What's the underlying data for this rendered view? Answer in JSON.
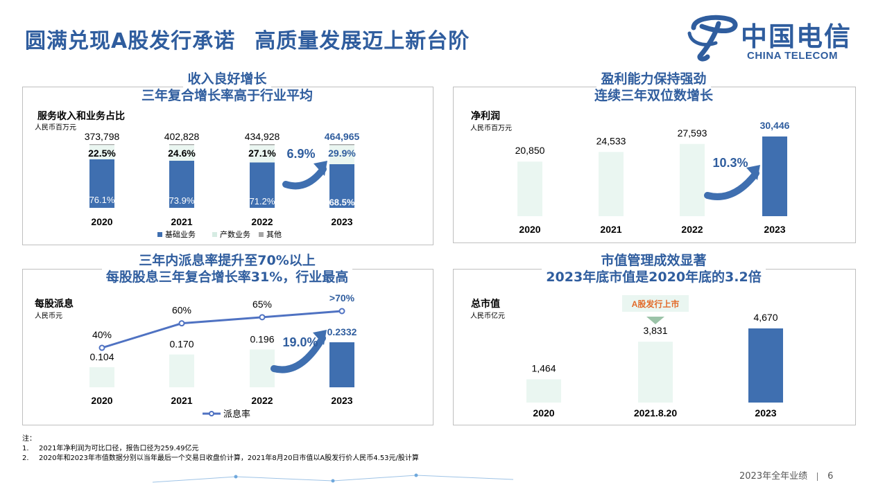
{
  "page": {
    "title_part1": "圆满兑现A股发行承诺",
    "title_part2": "高质量发展迈上新台阶",
    "logo_cn": "中国电信",
    "logo_en": "CHINA TELECOM",
    "footer_text": "2023年全年业绩",
    "page_number": "6",
    "notes_header": "注：",
    "notes": [
      {
        "num": "1.",
        "text": "2021年净利润为可比口径，报告口径为259.49亿元"
      },
      {
        "num": "2.",
        "text": "2020年和2023年市值数据分别以当年最后一个交易日收盘价计算，2021年8月20日市值以A股发行价人民币4.53元/股计算"
      }
    ],
    "colors": {
      "accent": "#2f5d9e",
      "bar_blue": "#3f6fb0",
      "bar_light": "#eaf6f1",
      "gray": "#bfbfbf"
    }
  },
  "chart_data": [
    {
      "type": "bar",
      "panel_title": [
        "收入良好增长",
        "三年复合增长率高于行业平均"
      ],
      "title": "服务收入和业务占比",
      "unit": "人民币百万元",
      "categories": [
        "2020",
        "2021",
        "2022",
        "2023"
      ],
      "totals": [
        "373,798",
        "402,828",
        "434,928",
        "464,965"
      ],
      "series": [
        {
          "name": "基础业务",
          "values": [
            76.1,
            73.9,
            71.2,
            68.5
          ],
          "labels": [
            "76.1%",
            "73.9%",
            "71.2%",
            "68.5%"
          ],
          "color": "#3f6fb0"
        },
        {
          "name": "产数业务",
          "values": [
            22.5,
            24.6,
            27.1,
            29.9
          ],
          "labels": [
            "22.5%",
            "24.6%",
            "27.1%",
            "29.9%"
          ],
          "color": "#eaf6f1"
        },
        {
          "name": "其他",
          "values": [
            1.4,
            1.5,
            1.7,
            1.6
          ],
          "color": "#a6a6a6"
        }
      ],
      "growth_label": "6.9%",
      "legend": "bottom"
    },
    {
      "type": "bar",
      "panel_title": [
        "盈利能力保持强劲",
        "连续三年双位数增长"
      ],
      "title": "净利润",
      "unit": "人民币百万元",
      "categories": [
        "2020",
        "2021",
        "2022",
        "2023"
      ],
      "values": [
        20850,
        24533,
        27593,
        30446
      ],
      "labels": [
        "20,850",
        "24,533",
        "27,593",
        "30,446"
      ],
      "growth_label": "10.3%"
    },
    {
      "type": "bar",
      "panel_title": [
        "三年内派息率提升至70%以上",
        "每股股息三年复合增长率31%，行业最高"
      ],
      "title": "每股派息",
      "unit": "人民币元",
      "categories": [
        "2020",
        "2021",
        "2022",
        "2023"
      ],
      "values": [
        0.104,
        0.17,
        0.196,
        0.2332
      ],
      "labels": [
        "0.104",
        "0.170",
        "0.196",
        "0.2332"
      ],
      "line_series": {
        "name": "派息率",
        "values": [
          40,
          60,
          65,
          70
        ],
        "labels": [
          "40%",
          "60%",
          "65%",
          ">70%"
        ]
      },
      "growth_label": "19.0%",
      "legend": "bottom"
    },
    {
      "type": "bar",
      "panel_title": [
        "市值管理成效显著",
        "2023年底市值是2020年底的3.2倍"
      ],
      "title": "总市值",
      "unit": "人民币亿元",
      "categories": [
        "2020",
        "2021.8.20",
        "2023"
      ],
      "values": [
        1464,
        3831,
        4670
      ],
      "labels": [
        "1,464",
        "3,831",
        "4,670"
      ],
      "callout": "A股发行上市"
    }
  ]
}
